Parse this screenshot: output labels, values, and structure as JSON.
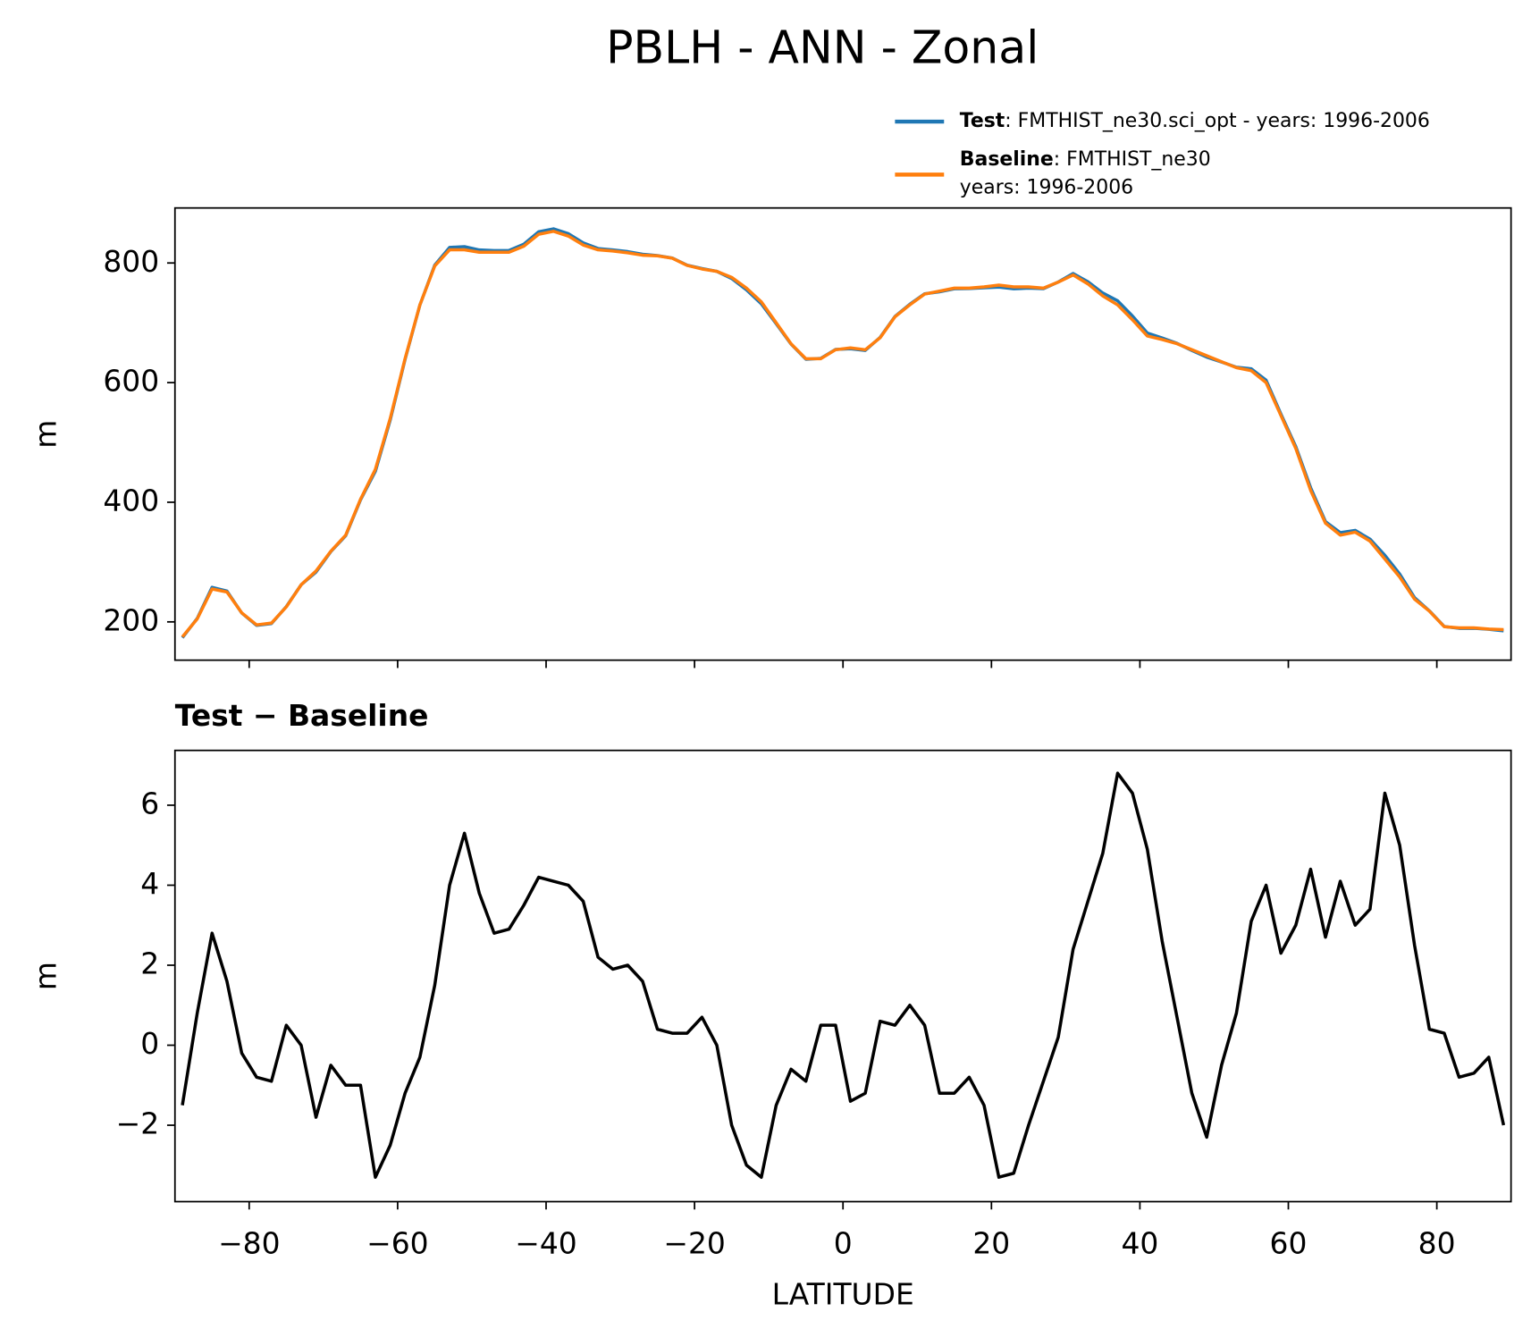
{
  "chart_data": [
    {
      "type": "line",
      "title": "PBLH - ANN - Zonal",
      "ylabel": "m",
      "x": [
        -89,
        -87,
        -85,
        -83,
        -81,
        -79,
        -77,
        -75,
        -73,
        -71,
        -69,
        -67,
        -65,
        -63,
        -61,
        -59,
        -57,
        -55,
        -53,
        -51,
        -49,
        -47,
        -45,
        -43,
        -41,
        -39,
        -37,
        -35,
        -33,
        -31,
        -29,
        -27,
        -25,
        -23,
        -21,
        -19,
        -17,
        -15,
        -13,
        -11,
        -9,
        -7,
        -5,
        -3,
        -1,
        1,
        3,
        5,
        7,
        9,
        11,
        13,
        15,
        17,
        19,
        21,
        23,
        25,
        27,
        29,
        31,
        33,
        35,
        37,
        39,
        41,
        43,
        45,
        47,
        49,
        51,
        53,
        55,
        57,
        59,
        61,
        63,
        65,
        67,
        69,
        71,
        73,
        75,
        77,
        79,
        81,
        83,
        85,
        87,
        89
      ],
      "series": [
        {
          "name": "Test",
          "label": ": FMTHIST_ne30.sci_opt - years: 1996-2006",
          "color": "#1f77b4",
          "values": [
            173.5,
            205.8,
            257.8,
            251.6,
            214.8,
            194.2,
            197.1,
            225.5,
            262,
            283.2,
            317.5,
            344,
            404,
            451.7,
            537.5,
            638.8,
            729.7,
            796.5,
            826,
            827.3,
            821.8,
            820.8,
            820.9,
            831.5,
            852.2,
            857.1,
            849,
            833.6,
            824.2,
            821.9,
            819,
            814.6,
            812.4,
            808.3,
            796.3,
            790.7,
            786,
            774,
            755,
            731.7,
            698.5,
            664.4,
            639.1,
            640.5,
            655.5,
            656.6,
            653.8,
            675.6,
            710.5,
            731,
            748.5,
            751.8,
            756.8,
            757.2,
            758.5,
            759.7,
            756.8,
            758,
            757.1,
            768.2,
            782.4,
            768.6,
            749.8,
            736.8,
            711.3,
            682.9,
            674.6,
            665.7,
            653.8,
            642.7,
            634.5,
            625.8,
            623.1,
            604,
            547.3,
            493,
            424.4,
            367.7,
            349.1,
            353,
            338.4,
            311.3,
            280,
            240.5,
            218.4,
            192.3,
            189.2,
            189.3,
            187.7,
            185
          ]
        },
        {
          "name": "Baseline",
          "label": ": FMTHIST_ne30",
          "label2": "years: 1996-2006",
          "color": "#ff7f0e",
          "values": [
            175,
            205,
            255,
            250,
            215,
            195,
            198,
            225,
            262,
            285,
            318,
            345,
            405,
            455,
            540,
            640,
            730,
            795,
            822,
            822,
            818,
            818,
            818,
            828,
            848,
            853,
            845,
            830,
            822,
            820,
            817,
            813,
            812,
            808,
            796,
            790,
            786,
            776,
            758,
            735,
            700,
            665,
            640,
            640,
            655,
            658,
            655,
            675,
            710,
            730,
            748,
            753,
            758,
            758,
            760,
            763,
            760,
            760,
            758,
            768,
            780,
            765,
            745,
            730,
            705,
            678,
            672,
            665,
            655,
            645,
            635,
            625,
            620,
            600,
            545,
            490,
            420,
            365,
            345,
            350,
            335,
            305,
            275,
            238,
            218,
            192,
            190,
            190,
            188,
            187
          ]
        }
      ],
      "xlim": [
        -90,
        90
      ],
      "xticks": [
        -80,
        -60,
        -40,
        -20,
        0,
        20,
        40,
        60,
        80
      ],
      "ylim": [
        136,
        892
      ],
      "yticks": [
        200,
        400,
        600,
        800
      ]
    },
    {
      "type": "line",
      "title": "Test − Baseline",
      "ylabel": "m",
      "xlabel": "LATITUDE",
      "x": [
        -89,
        -87,
        -85,
        -83,
        -81,
        -79,
        -77,
        -75,
        -73,
        -71,
        -69,
        -67,
        -65,
        -63,
        -61,
        -59,
        -57,
        -55,
        -53,
        -51,
        -49,
        -47,
        -45,
        -43,
        -41,
        -39,
        -37,
        -35,
        -33,
        -31,
        -29,
        -27,
        -25,
        -23,
        -21,
        -19,
        -17,
        -15,
        -13,
        -11,
        -9,
        -7,
        -5,
        -3,
        -1,
        1,
        3,
        5,
        7,
        9,
        11,
        13,
        15,
        17,
        19,
        21,
        23,
        25,
        27,
        29,
        31,
        33,
        35,
        37,
        39,
        41,
        43,
        45,
        47,
        49,
        51,
        53,
        55,
        57,
        59,
        61,
        63,
        65,
        67,
        69,
        71,
        73,
        75,
        77,
        79,
        81,
        83,
        85,
        87,
        89
      ],
      "series": [
        {
          "color": "#000000",
          "values": [
            -1.5,
            0.8,
            2.8,
            1.6,
            -0.2,
            -0.8,
            -0.9,
            0.5,
            0,
            -1.8,
            -0.5,
            -1,
            -1,
            -3.3,
            -2.5,
            -1.2,
            -0.3,
            1.5,
            4,
            5.3,
            3.8,
            2.8,
            2.9,
            3.5,
            4.2,
            4.1,
            4,
            3.6,
            2.2,
            1.9,
            2,
            1.6,
            0.4,
            0.3,
            0.3,
            0.7,
            0,
            -2,
            -3,
            -3.3,
            -1.5,
            -0.6,
            -0.9,
            0.5,
            0.5,
            -1.4,
            -1.2,
            0.6,
            0.5,
            1,
            0.5,
            -1.2,
            -1.2,
            -0.8,
            -1.5,
            -3.3,
            -3.2,
            -2,
            -0.9,
            0.2,
            2.4,
            3.6,
            4.8,
            6.8,
            6.3,
            4.9,
            2.6,
            0.7,
            -1.2,
            -2.3,
            -0.5,
            0.8,
            3.1,
            4,
            2.3,
            3,
            4.4,
            2.7,
            4.1,
            3,
            3.4,
            6.3,
            5,
            2.5,
            0.4,
            0.3,
            -0.8,
            -0.7,
            -0.3,
            -2
          ]
        }
      ],
      "xlim": [
        -90,
        90
      ],
      "xticks": [
        {
          "value": -80,
          "label": "−80"
        },
        {
          "value": -60,
          "label": "−60"
        },
        {
          "value": -40,
          "label": "−40"
        },
        {
          "value": -20,
          "label": "−20"
        },
        0,
        20,
        40,
        60,
        80
      ],
      "ylim": [
        -3.91,
        7.37
      ],
      "yticks": [
        {
          "value": -2,
          "label": "−2"
        },
        0,
        2,
        4,
        6
      ]
    }
  ]
}
